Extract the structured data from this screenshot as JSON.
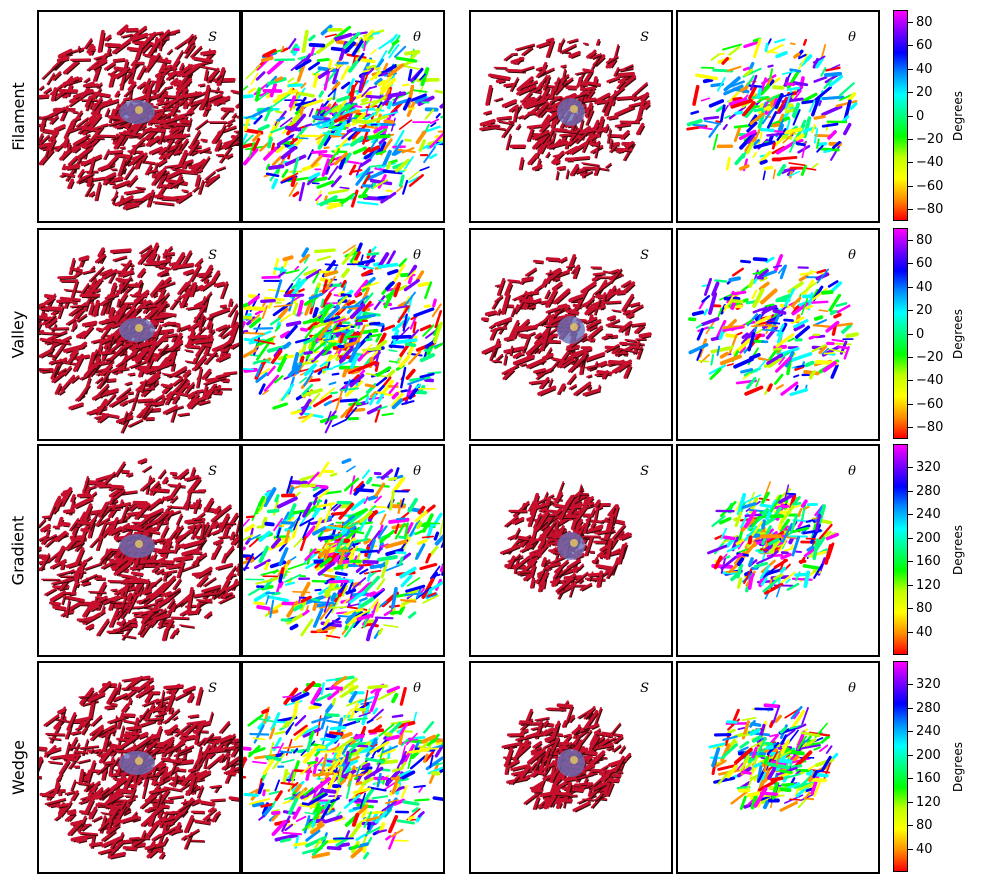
{
  "rows": [
    {
      "label": "Filament",
      "colorbar": {
        "label": "Degrees",
        "ticks": [
          "80",
          "60",
          "40",
          "20",
          "0",
          "−20",
          "−40",
          "−60",
          "−80"
        ],
        "range": [
          -90,
          90
        ],
        "gradient": "linear-gradient(to bottom,#ff00ff,#7a00ff,#0000ff,#0090ff,#00ffff,#00ff80,#00ff00,#c0ff00,#ffff00,#ff9000,#ff0000)"
      }
    },
    {
      "label": "Valley",
      "colorbar": {
        "label": "Degrees",
        "ticks": [
          "80",
          "60",
          "40",
          "20",
          "0",
          "−20",
          "−40",
          "−60",
          "−80"
        ],
        "range": [
          -90,
          90
        ],
        "gradient": "linear-gradient(to bottom,#ff00ff,#7a00ff,#0000ff,#0090ff,#00ffff,#00ff80,#00ff00,#c0ff00,#ffff00,#ff9000,#ff0000)"
      }
    },
    {
      "label": "Gradient",
      "colorbar": {
        "label": "Degrees",
        "ticks": [
          "320",
          "280",
          "240",
          "200",
          "160",
          "120",
          "80",
          "40"
        ],
        "range": [
          0,
          360
        ],
        "gradient": "linear-gradient(to bottom,#ff00ff,#7a00ff,#0000ff,#0090ff,#00ffff,#00ff80,#00ff00,#c0ff00,#ffff00,#ff9000,#ff0000)"
      }
    },
    {
      "label": "Wedge",
      "colorbar": {
        "label": "Degrees",
        "ticks": [
          "320",
          "280",
          "240",
          "200",
          "160",
          "120",
          "80",
          "40"
        ],
        "range": [
          0,
          360
        ],
        "gradient": "linear-gradient(to bottom,#ff00ff,#7a00ff,#0000ff,#0090ff,#00ffff,#00ff80,#00ff00,#c0ff00,#ffff00,#ff9000,#ff0000)"
      }
    }
  ],
  "panel_labels": {
    "s": "S",
    "theta": "θ"
  },
  "colors": {
    "s_map": "#c8102e",
    "s_shadow": "#3a0a0a",
    "core_blue": "#6a6fb8",
    "core_yellow": "#e8c860",
    "theta_palette": [
      "#ff00ff",
      "#7a00ff",
      "#0000ff",
      "#0090ff",
      "#00ffff",
      "#00ff80",
      "#00ff00",
      "#c0ff00",
      "#ffff00",
      "#ff9000",
      "#ff0000"
    ]
  }
}
